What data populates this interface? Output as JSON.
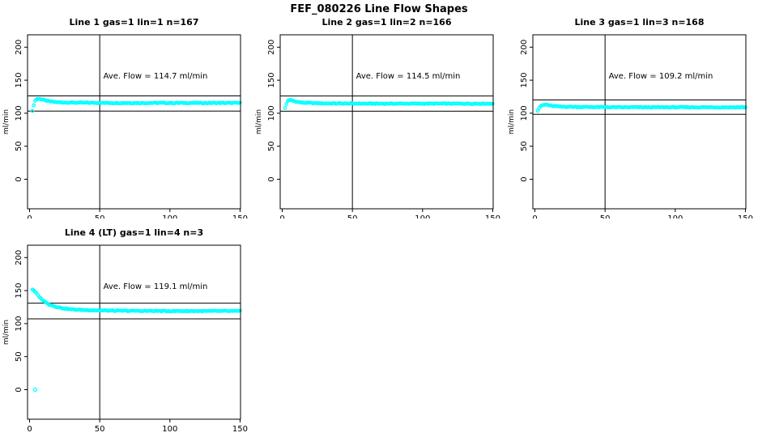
{
  "page": {
    "title": "FEF_080226  Line Flow Shapes"
  },
  "colors": {
    "background": "#ffffff",
    "foreground": "#000000",
    "points": "#00ffff"
  },
  "chart_data": [
    {
      "type": "scatter",
      "title": "Line 1 gas=1 lin=1 n=167",
      "annotation": "Ave. Flow =  114.7  ml/min",
      "ave_flow_ml_min": 114.7,
      "n": 167,
      "gas": 1,
      "lin": 1,
      "xlabel": "",
      "ylabel": "ml/min",
      "x_ticks": [
        0,
        50,
        100,
        150
      ],
      "y_ticks": [
        0,
        50,
        100,
        150,
        200
      ],
      "xlim": [
        0,
        150
      ],
      "ylim": [
        0,
        200
      ],
      "vline_x": 50,
      "hlines": [
        126.2,
        103.2
      ],
      "series": [
        {
          "name": "flow-trace",
          "profile": [
            [
              2,
              104
            ],
            [
              3,
              112
            ],
            [
              4,
              119
            ],
            [
              5,
              121
            ],
            [
              7,
              122
            ],
            [
              10,
              120
            ],
            [
              14,
              118
            ],
            [
              20,
              116.5
            ],
            [
              30,
              116
            ],
            [
              60,
              115.5
            ],
            [
              100,
              115.5
            ],
            [
              150,
              115.5
            ]
          ],
          "extra_points": []
        }
      ]
    },
    {
      "type": "scatter",
      "title": "Line 2 gas=1 lin=2 n=166",
      "annotation": "Ave. Flow =  114.5  ml/min",
      "ave_flow_ml_min": 114.5,
      "n": 166,
      "gas": 1,
      "lin": 2,
      "xlabel": "",
      "ylabel": "ml/min",
      "x_ticks": [
        0,
        50,
        100,
        150
      ],
      "y_ticks": [
        0,
        50,
        100,
        150,
        200
      ],
      "xlim": [
        0,
        150
      ],
      "ylim": [
        0,
        200
      ],
      "vline_x": 50,
      "hlines": [
        126.0,
        103.1
      ],
      "series": [
        {
          "name": "flow-trace",
          "profile": [
            [
              2,
              108
            ],
            [
              3,
              114
            ],
            [
              4,
              119
            ],
            [
              6,
              120
            ],
            [
              9,
              118
            ],
            [
              14,
              116
            ],
            [
              25,
              115
            ],
            [
              60,
              114.5
            ],
            [
              150,
              114.5
            ]
          ],
          "extra_points": []
        }
      ]
    },
    {
      "type": "scatter",
      "title": "Line 3 gas=1 lin=3 n=168",
      "annotation": "Ave. Flow =  109.2  ml/min",
      "ave_flow_ml_min": 109.2,
      "n": 168,
      "gas": 1,
      "lin": 3,
      "xlabel": "",
      "ylabel": "ml/min",
      "x_ticks": [
        0,
        50,
        100,
        150
      ],
      "y_ticks": [
        0,
        50,
        100,
        150,
        200
      ],
      "xlim": [
        0,
        150
      ],
      "ylim": [
        0,
        200
      ],
      "vline_x": 50,
      "hlines": [
        120.1,
        98.3
      ],
      "series": [
        {
          "name": "flow-trace",
          "profile": [
            [
              2,
              104
            ],
            [
              3,
              108
            ],
            [
              5,
              112
            ],
            [
              8,
              113
            ],
            [
              12,
              111
            ],
            [
              18,
              110
            ],
            [
              30,
              109.5
            ],
            [
              60,
              109
            ],
            [
              150,
              109
            ]
          ],
          "extra_points": []
        }
      ]
    },
    {
      "type": "scatter",
      "title": "Line 4 (LT) gas=1 lin=4 n=3",
      "annotation": "Ave. Flow =  119.1  ml/min",
      "ave_flow_ml_min": 119.1,
      "n": 3,
      "gas": 1,
      "lin": 4,
      "xlabel": "",
      "ylabel": "ml/min",
      "x_ticks": [
        0,
        50,
        100,
        150
      ],
      "y_ticks": [
        0,
        50,
        100,
        150,
        200
      ],
      "xlim": [
        0,
        150
      ],
      "ylim": [
        0,
        200
      ],
      "vline_x": 50,
      "hlines": [
        131.0,
        107.2
      ],
      "series": [
        {
          "name": "flow-trace",
          "profile": [
            [
              2,
              152
            ],
            [
              4,
              148
            ],
            [
              6,
              143
            ],
            [
              8,
              138
            ],
            [
              11,
              133
            ],
            [
              14,
              129
            ],
            [
              18,
              126
            ],
            [
              23,
              123.5
            ],
            [
              30,
              121.5
            ],
            [
              40,
              120.5
            ],
            [
              60,
              119.5
            ],
            [
              100,
              119
            ],
            [
              150,
              119
            ]
          ],
          "extra_points": [
            [
              4,
              0
            ]
          ]
        }
      ]
    }
  ]
}
